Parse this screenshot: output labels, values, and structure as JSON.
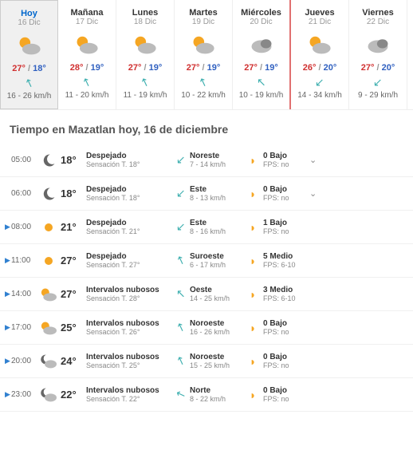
{
  "daily": {
    "cards": [
      {
        "name": "Hoy",
        "date": "16 Dic",
        "today": true,
        "flagged": false,
        "icon": "partly",
        "hi": "27°",
        "lo": "18°",
        "wind_dir": 200,
        "wind": "16 - 26 km/h"
      },
      {
        "name": "Mañana",
        "date": "17 Dic",
        "today": false,
        "flagged": false,
        "icon": "partly",
        "hi": "28°",
        "lo": "19°",
        "wind_dir": 200,
        "wind": "11 - 20 km/h"
      },
      {
        "name": "Lunes",
        "date": "18 Dic",
        "today": false,
        "flagged": false,
        "icon": "partly",
        "hi": "27°",
        "lo": "19°",
        "wind_dir": 200,
        "wind": "11 - 19 km/h"
      },
      {
        "name": "Martes",
        "date": "19 Dic",
        "today": false,
        "flagged": false,
        "icon": "partly",
        "hi": "27°",
        "lo": "19°",
        "wind_dir": 200,
        "wind": "10 - 22 km/h"
      },
      {
        "name": "Miércoles",
        "date": "20 Dic",
        "today": false,
        "flagged": true,
        "icon": "cloudy",
        "hi": "27°",
        "lo": "19°",
        "wind_dir": 180,
        "wind": "10 - 19 km/h"
      },
      {
        "name": "Jueves",
        "date": "21 Dic",
        "today": false,
        "flagged": false,
        "icon": "partly",
        "hi": "26°",
        "lo": "20°",
        "wind_dir": 90,
        "wind": "14 - 34 km/h"
      },
      {
        "name": "Viernes",
        "date": "22 Dic",
        "today": false,
        "flagged": false,
        "icon": "cloudy",
        "hi": "27°",
        "lo": "20°",
        "wind_dir": 90,
        "wind": "9 - 29 km/h"
      }
    ]
  },
  "heading": "Tiempo en Mazatlan hoy, 16 de diciembre",
  "hourly": {
    "rows": [
      {
        "mark": false,
        "time": "05:00",
        "icon": "moon",
        "temp": "18°",
        "cond": "Despejado",
        "feels": "Sensación T. 18°",
        "wdir": 90,
        "wdir_label": "Noreste",
        "wspd": "7 - 14 km/h",
        "uv": "0 Bajo",
        "fps": "FPS: no",
        "chev": true
      },
      {
        "mark": false,
        "time": "06:00",
        "icon": "moon",
        "temp": "18°",
        "cond": "Despejado",
        "feels": "Sensación T. 18°",
        "wdir": 90,
        "wdir_label": "Este",
        "wspd": "8 - 13 km/h",
        "uv": "0 Bajo",
        "fps": "FPS: no",
        "chev": true
      },
      {
        "mark": true,
        "time": "08:00",
        "icon": "sun",
        "temp": "21°",
        "cond": "Despejado",
        "feels": "Sensación T. 21°",
        "wdir": 90,
        "wdir_label": "Este",
        "wspd": "8 - 16 km/h",
        "uv": "1 Bajo",
        "fps": "FPS: no",
        "chev": false
      },
      {
        "mark": true,
        "time": "11:00",
        "icon": "sun",
        "temp": "27°",
        "cond": "Despejado",
        "feels": "Sensación T. 27°",
        "wdir": 200,
        "wdir_label": "Suroeste",
        "wspd": "6 - 17 km/h",
        "uv": "5 Medio",
        "fps": "FPS: 6-10",
        "chev": false
      },
      {
        "mark": true,
        "time": "14:00",
        "icon": "partly",
        "temp": "27°",
        "cond": "Intervalos nubosos",
        "feels": "Sensación T. 28°",
        "wdir": 180,
        "wdir_label": "Oeste",
        "wspd": "14 - 25 km/h",
        "uv": "3 Medio",
        "fps": "FPS: 6-10",
        "chev": false
      },
      {
        "mark": true,
        "time": "17:00",
        "icon": "partly",
        "temp": "25°",
        "cond": "Intervalos nubosos",
        "feels": "Sensación T. 26°",
        "wdir": 200,
        "wdir_label": "Noroeste",
        "wspd": "16 - 26 km/h",
        "uv": "0 Bajo",
        "fps": "FPS: no",
        "chev": false
      },
      {
        "mark": true,
        "time": "20:00",
        "icon": "moonpartly",
        "temp": "24°",
        "cond": "Intervalos nubosos",
        "feels": "Sensación T. 25°",
        "wdir": 200,
        "wdir_label": "Noroeste",
        "wspd": "15 - 25 km/h",
        "uv": "0 Bajo",
        "fps": "FPS: no",
        "chev": false
      },
      {
        "mark": true,
        "time": "23:00",
        "icon": "moonpartly",
        "temp": "22°",
        "cond": "Intervalos nubosos",
        "feels": "Sensación T. 22°",
        "wdir": 160,
        "wdir_label": "Norte",
        "wspd": "8 - 22 km/h",
        "uv": "0 Bajo",
        "fps": "FPS: no",
        "chev": false
      }
    ]
  }
}
